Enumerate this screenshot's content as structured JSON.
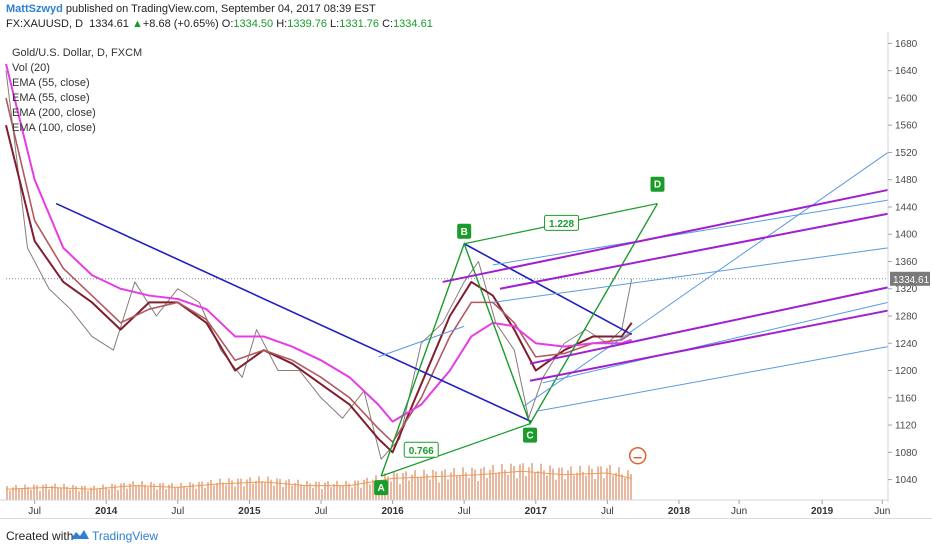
{
  "header": {
    "author": "MattSzwyd",
    "published": " published on TradingView.com, September 04, 2017 08:39 EST",
    "symbol": "FX:XAUUSD, D",
    "last": "1334.61",
    "change_arrow": "▲",
    "change": "+8.68 (+0.65%)",
    "o_label": "O:",
    "o": "1334.50",
    "h_label": "H:",
    "h": "1339.76",
    "l_label": "L:",
    "l": "1331.76",
    "c_label": "C:",
    "c": "1334.61"
  },
  "footer": {
    "created_with": "Created with",
    "brand": "TradingView",
    "icon": "tradingview-logo-icon"
  },
  "colors": {
    "ema55": "#7f1e2e",
    "ema100": "#b05a60",
    "ema200": "#e63ce6",
    "price": "#8a7a7a",
    "pattern": "#1a9c2a",
    "trend": "#2020c0",
    "channel": "#a020d0",
    "fib": "#5a9ae0",
    "volume": "#e8b8a0",
    "volume_ma": "#f09a50"
  },
  "chart_data": {
    "type": "line",
    "title": "Gold/U.S. Dollar, D, FXCM",
    "legend": [
      "Vol (20)",
      "EMA (55, close)",
      "EMA (55, close)",
      "EMA (200, close)",
      "EMA (100, close)"
    ],
    "legend_placement": "top-left",
    "x_ticks": [
      "Jul",
      "2014",
      "Jul",
      "2015",
      "Jul",
      "2016",
      "Jul",
      "2017",
      "Jul",
      "2018",
      "Jun",
      "2019",
      "Jun"
    ],
    "y_ticks": [
      1680,
      1640,
      1600,
      1560,
      1520,
      1480,
      1440,
      1400,
      1360,
      1320,
      1280,
      1240,
      1200,
      1160,
      1120,
      1080,
      1040
    ],
    "ylim": [
      1010,
      1685
    ],
    "xlim": [
      2013.3,
      2019.46
    ],
    "last_price_label": "1334.61",
    "last_price": 1334.61,
    "series": [
      {
        "name": "Price",
        "x": [
          2013.3,
          2013.45,
          2013.6,
          2013.75,
          2013.9,
          2014.05,
          2014.2,
          2014.35,
          2014.5,
          2014.65,
          2014.8,
          2014.95,
          2015.05,
          2015.2,
          2015.35,
          2015.5,
          2015.65,
          2015.8,
          2015.92,
          2016.05,
          2016.2,
          2016.35,
          2016.5,
          2016.6,
          2016.72,
          2016.85,
          2016.95,
          2017.05,
          2017.2,
          2017.35,
          2017.5,
          2017.6,
          2017.67
        ],
        "y": [
          1640,
          1380,
          1320,
          1290,
          1250,
          1230,
          1330,
          1280,
          1320,
          1300,
          1230,
          1190,
          1260,
          1200,
          1200,
          1160,
          1130,
          1170,
          1070,
          1100,
          1240,
          1270,
          1330,
          1360,
          1270,
          1230,
          1130,
          1190,
          1240,
          1260,
          1240,
          1260,
          1334.61
        ]
      },
      {
        "name": "EMA (55, close)",
        "x": [
          2013.3,
          2013.5,
          2013.7,
          2013.9,
          2014.1,
          2014.3,
          2014.5,
          2014.7,
          2014.9,
          2015.1,
          2015.3,
          2015.5,
          2015.7,
          2015.9,
          2016.0,
          2016.2,
          2016.4,
          2016.55,
          2016.7,
          2016.85,
          2017.0,
          2017.2,
          2017.4,
          2017.6,
          2017.67
        ],
        "y": [
          1560,
          1390,
          1330,
          1300,
          1260,
          1300,
          1300,
          1270,
          1200,
          1230,
          1210,
          1180,
          1150,
          1100,
          1080,
          1180,
          1280,
          1330,
          1310,
          1260,
          1200,
          1230,
          1250,
          1250,
          1270
        ]
      },
      {
        "name": "EMA (100, close)",
        "x": [
          2013.3,
          2013.5,
          2013.7,
          2013.9,
          2014.1,
          2014.3,
          2014.5,
          2014.7,
          2014.9,
          2015.1,
          2015.3,
          2015.5,
          2015.7,
          2015.9,
          2016.0,
          2016.2,
          2016.4,
          2016.55,
          2016.7,
          2016.85,
          2017.0,
          2017.2,
          2017.4,
          2017.6,
          2017.67
        ],
        "y": [
          1600,
          1420,
          1350,
          1310,
          1270,
          1290,
          1300,
          1275,
          1215,
          1230,
          1215,
          1190,
          1160,
          1115,
          1095,
          1160,
          1250,
          1300,
          1300,
          1270,
          1220,
          1225,
          1240,
          1245,
          1255
        ]
      },
      {
        "name": "EMA (200, close)",
        "x": [
          2013.3,
          2013.5,
          2013.7,
          2013.9,
          2014.1,
          2014.3,
          2014.5,
          2014.7,
          2014.9,
          2015.1,
          2015.3,
          2015.5,
          2015.7,
          2015.9,
          2016.0,
          2016.2,
          2016.4,
          2016.55,
          2016.7,
          2016.85,
          2017.0,
          2017.2,
          2017.4,
          2017.6,
          2017.67
        ],
        "y": [
          1650,
          1480,
          1380,
          1340,
          1320,
          1310,
          1305,
          1290,
          1250,
          1250,
          1235,
          1215,
          1190,
          1150,
          1125,
          1150,
          1200,
          1250,
          1270,
          1265,
          1240,
          1235,
          1240,
          1240,
          1245
        ]
      }
    ],
    "volume": {
      "x": [
        2013.3,
        2013.6,
        2013.9,
        2014.2,
        2014.5,
        2014.8,
        2015.1,
        2015.4,
        2015.7,
        2016.0,
        2016.3,
        2016.6,
        2016.9,
        2017.2,
        2017.5,
        2017.67
      ],
      "values": [
        30,
        35,
        30,
        40,
        35,
        45,
        50,
        40,
        40,
        60,
        65,
        70,
        80,
        70,
        75,
        60
      ]
    },
    "annotations": [
      {
        "label": "A",
        "x": 2015.92,
        "y": 1045
      },
      {
        "label": "B",
        "x": 2016.5,
        "y": 1386
      },
      {
        "label": "C",
        "x": 2016.96,
        "y": 1122
      },
      {
        "label": "D",
        "x": 2017.85,
        "y": 1455
      }
    ],
    "ratios": [
      {
        "label": "0.766",
        "x": 2016.2,
        "y": 1083
      },
      {
        "label": "1.228",
        "x": 2017.18,
        "y": 1416
      }
    ]
  }
}
